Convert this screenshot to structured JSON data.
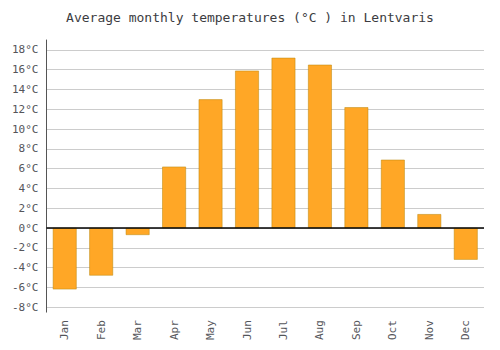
{
  "chart_data": {
    "type": "bar",
    "title": "Average monthly temperatures (°C ) in Lentvaris",
    "categories": [
      "Jan",
      "Feb",
      "Mar",
      "Apr",
      "May",
      "Jun",
      "Jul",
      "Aug",
      "Sep",
      "Oct",
      "Nov",
      "Dec"
    ],
    "values": [
      -6.2,
      -4.8,
      -0.7,
      6.2,
      13.0,
      15.9,
      17.2,
      16.5,
      12.2,
      6.9,
      1.4,
      -3.2
    ],
    "color": "#FFA726",
    "ylim": [
      -8.5,
      19
    ],
    "yticks": [
      {
        "value": -8,
        "label": "-8°C"
      },
      {
        "value": -6,
        "label": "-6°C"
      },
      {
        "value": -4,
        "label": "-4°C"
      },
      {
        "value": -2,
        "label": "-2°C"
      },
      {
        "value": 0,
        "label": "0°C"
      },
      {
        "value": 2,
        "label": "2°C"
      },
      {
        "value": 4,
        "label": "4°C"
      },
      {
        "value": 6,
        "label": "6°C"
      },
      {
        "value": 8,
        "label": "8°C"
      },
      {
        "value": 10,
        "label": "10°C"
      },
      {
        "value": 12,
        "label": "12°C"
      },
      {
        "value": 14,
        "label": "14°C"
      },
      {
        "value": 16,
        "label": "16°C"
      },
      {
        "value": 18,
        "label": "18°C"
      }
    ],
    "grid": true
  }
}
